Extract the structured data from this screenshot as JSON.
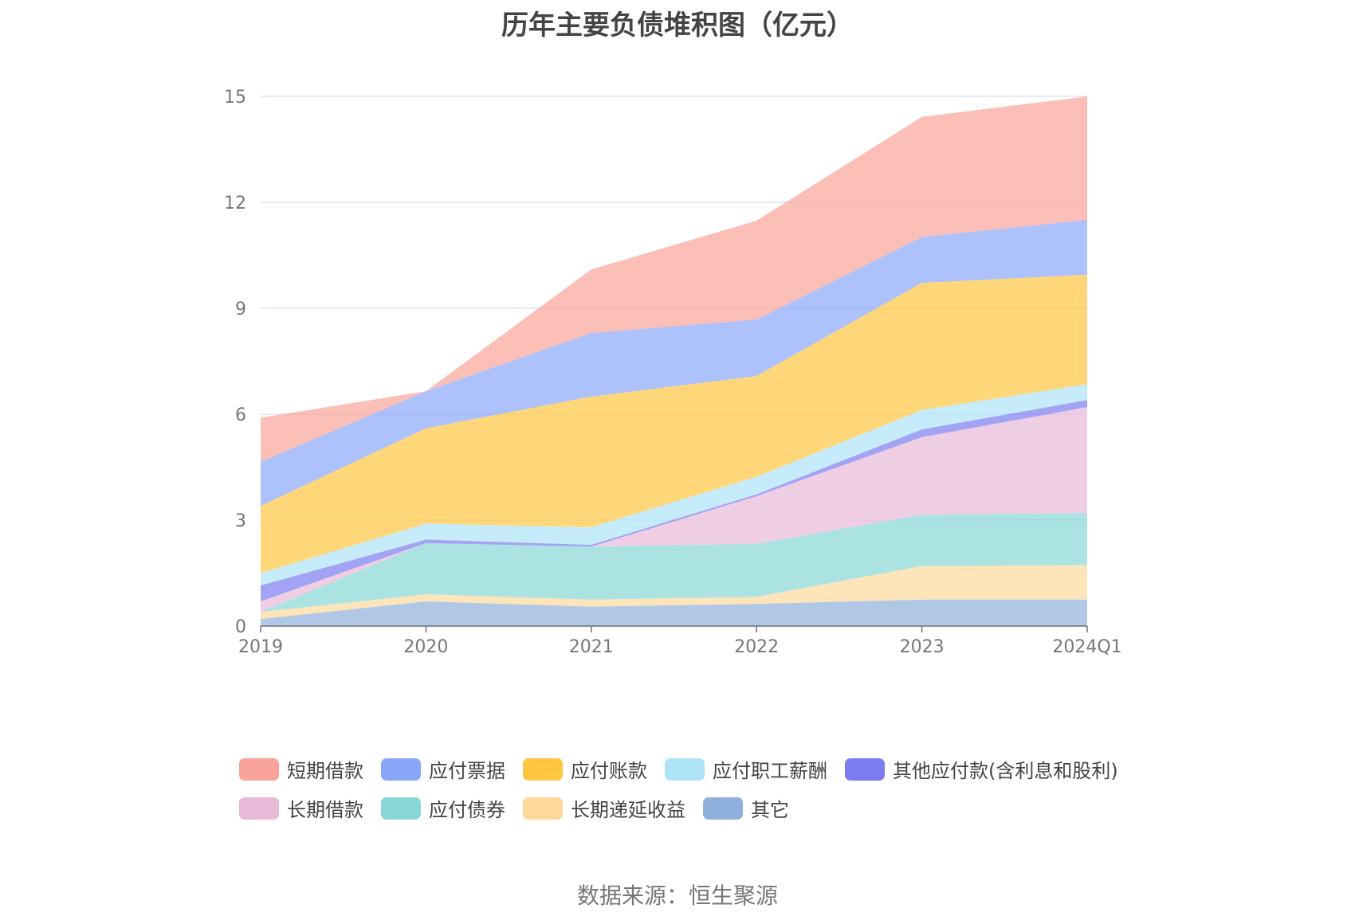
{
  "chart_data": {
    "type": "area",
    "stacked": true,
    "title": "历年主要负债堆积图（亿元）",
    "categories": [
      "2019",
      "2020",
      "2021",
      "2022",
      "2023",
      "2024Q1"
    ],
    "y_ticks": [
      "0",
      "3",
      "6",
      "9",
      "12",
      "15"
    ],
    "ylim": [
      0,
      15
    ],
    "grid": true,
    "legend_position": "bottom",
    "series": [
      {
        "name": "其它",
        "color": "#8fb0dc",
        "values": [
          0.2,
          0.7,
          0.55,
          0.63,
          0.75,
          0.75
        ]
      },
      {
        "name": "长期递延收益",
        "color": "#fdd89b",
        "values": [
          0.2,
          0.2,
          0.2,
          0.2,
          0.95,
          0.98
        ]
      },
      {
        "name": "应付债券",
        "color": "#88d7d7",
        "values": [
          0.0,
          1.45,
          1.5,
          1.5,
          1.45,
          1.47
        ]
      },
      {
        "name": "长期借款",
        "color": "#e8b9d9",
        "values": [
          0.3,
          0.0,
          0.0,
          1.35,
          2.2,
          3.0
        ]
      },
      {
        "name": "其他应付款(含利息和股利)",
        "color": "#7a7cf0",
        "values": [
          0.45,
          0.1,
          0.05,
          0.05,
          0.22,
          0.2
        ]
      },
      {
        "name": "应付职工薪酬",
        "color": "#aee3f8",
        "values": [
          0.35,
          0.45,
          0.5,
          0.5,
          0.55,
          0.45
        ]
      },
      {
        "name": "应付账款",
        "color": "#ffc640",
        "values": [
          1.9,
          2.7,
          3.7,
          2.85,
          3.6,
          3.1
        ]
      },
      {
        "name": "应付票据",
        "color": "#8aa6f8",
        "values": [
          1.25,
          1.05,
          1.8,
          1.6,
          1.3,
          1.55
        ]
      },
      {
        "name": "短期借款",
        "color": "#f9a49a",
        "values": [
          1.25,
          0.0,
          1.8,
          2.8,
          3.4,
          3.5
        ]
      }
    ],
    "legend_order": [
      "短期借款",
      "应付票据",
      "应付账款",
      "应付职工薪酬",
      "其他应付款(含利息和股利)",
      "长期借款",
      "应付债券",
      "长期递延收益",
      "其它"
    ]
  },
  "source_label": "数据来源：恒生聚源"
}
